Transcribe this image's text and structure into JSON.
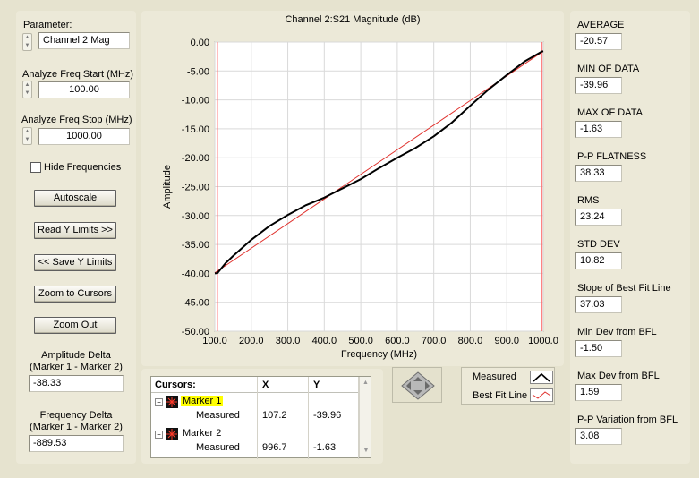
{
  "left": {
    "parameter_label": "Parameter:",
    "parameter_value": "Channel 2 Mag",
    "start_label": "Analyze Freq Start (MHz)",
    "start_value": "100.00",
    "stop_label": "Analyze Freq Stop (MHz)",
    "stop_value": "1000.00",
    "hide_freq_label": "Hide Frequencies",
    "buttons": {
      "autoscale": "Autoscale",
      "read_y": "Read Y Limits >>",
      "save_y": "<< Save Y Limits",
      "zoom_cursors": "Zoom to Cursors",
      "zoom_out": "Zoom Out"
    },
    "amp_delta_label1": "Amplitude Delta",
    "amp_delta_label2": "(Marker 1 - Marker 2)",
    "amp_delta_value": "-38.33",
    "freq_delta_label1": "Frequency Delta",
    "freq_delta_label2": "(Marker 1 - Marker 2)",
    "freq_delta_value": "-889.53"
  },
  "chart_data": {
    "type": "line",
    "title": "Channel 2:S21 Magnitude (dB)",
    "xlabel": "Frequency (MHz)",
    "ylabel": "Amplitude",
    "xlim": [
      100,
      1000
    ],
    "ylim": [
      -50,
      0
    ],
    "xticks": [
      "100.0",
      "200.0",
      "300.0",
      "400.0",
      "500.0",
      "600.0",
      "700.0",
      "800.0",
      "900.0",
      "1000.0"
    ],
    "yticks": [
      "0.00",
      "-5.00",
      "-10.00",
      "-15.00",
      "-20.00",
      "-25.00",
      "-30.00",
      "-35.00",
      "-40.00",
      "-45.00",
      "-50.00"
    ],
    "grid": true,
    "series": [
      {
        "name": "Measured",
        "color": "#000000",
        "x": [
          100,
          107.2,
          130,
          150,
          200,
          250,
          300,
          350,
          400,
          450,
          500,
          550,
          600,
          650,
          700,
          750,
          800,
          850,
          900,
          950,
          996.7,
          1000
        ],
        "y": [
          -40.0,
          -39.96,
          -38.2,
          -37.0,
          -34.2,
          -31.8,
          -29.9,
          -28.2,
          -26.9,
          -25.3,
          -23.7,
          -21.8,
          -20.0,
          -18.3,
          -16.3,
          -13.9,
          -11.0,
          -8.2,
          -5.7,
          -3.3,
          -1.63,
          -1.6
        ]
      },
      {
        "name": "Best Fit Line",
        "color": "#e0302c",
        "x": [
          100,
          1000
        ],
        "y": [
          -39.9,
          -1.6
        ]
      }
    ],
    "vertical_markers": [
      107.2,
      996.7
    ]
  },
  "cursors": {
    "header": "Cursors:",
    "col_x": "X",
    "col_y": "Y",
    "rows": [
      {
        "name": "Marker 1",
        "sub": "Measured",
        "x": "107.2",
        "y": "-39.96"
      },
      {
        "name": "Marker 2",
        "sub": "Measured",
        "x": "996.7",
        "y": "-1.63"
      }
    ]
  },
  "legend": {
    "measured": "Measured",
    "bfl": "Best Fit Line"
  },
  "stats": [
    {
      "label": "AVERAGE",
      "value": "-20.57"
    },
    {
      "label": "MIN OF DATA",
      "value": "-39.96"
    },
    {
      "label": "MAX OF DATA",
      "value": "-1.63"
    },
    {
      "label": "P-P FLATNESS",
      "value": "38.33"
    },
    {
      "label": "RMS",
      "value": "23.24"
    },
    {
      "label": "STD DEV",
      "value": "10.82"
    },
    {
      "label": "Slope of Best Fit Line",
      "value": "37.03"
    },
    {
      "label": "Min Dev from BFL",
      "value": "-1.50"
    },
    {
      "label": "Max Dev from BFL",
      "value": "1.59"
    },
    {
      "label": "P-P Variation from BFL",
      "value": "3.08"
    }
  ]
}
